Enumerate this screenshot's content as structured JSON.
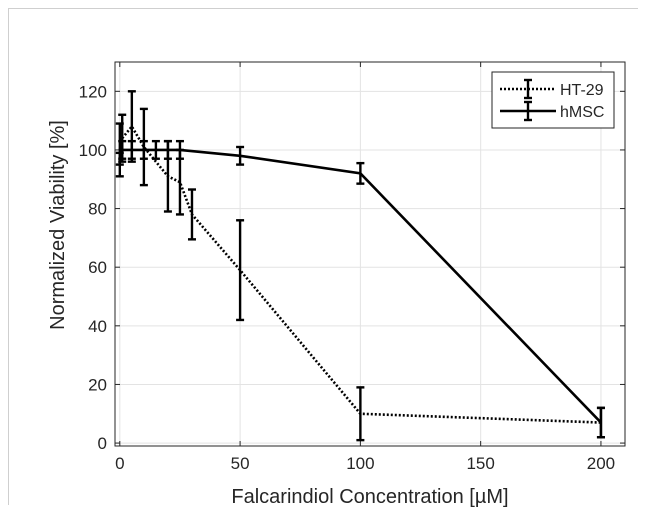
{
  "chart_data": {
    "type": "line",
    "xlabel": "Falcarindiol Concentration [µM]",
    "ylabel": "Normalized Viability [%]",
    "xlim": [
      -2,
      210
    ],
    "ylim": [
      -1,
      130
    ],
    "x_ticks": [
      0,
      50,
      100,
      150,
      200
    ],
    "y_ticks": [
      0,
      20,
      40,
      60,
      80,
      100,
      120
    ],
    "grid": true,
    "legend_position": "top-right",
    "series": [
      {
        "name": "HT-29",
        "line_style": "dotted",
        "color": "#000000",
        "x": [
          0,
          1,
          5,
          10,
          20,
          25,
          30,
          50,
          100,
          200
        ],
        "y": [
          100,
          104,
          108,
          101,
          91,
          89,
          78,
          59,
          10,
          7
        ],
        "err": [
          9,
          8,
          12,
          13,
          12,
          11,
          8.5,
          17,
          9,
          5
        ]
      },
      {
        "name": "hMSC",
        "line_style": "solid",
        "color": "#000000",
        "x": [
          0,
          1,
          5,
          10,
          15,
          20,
          25,
          50,
          100,
          200
        ],
        "y": [
          97,
          100,
          100,
          100,
          100,
          100,
          100,
          98,
          92,
          7
        ],
        "err": [
          2,
          3,
          3,
          3,
          3,
          3,
          3,
          3,
          3.5,
          5
        ]
      }
    ]
  }
}
